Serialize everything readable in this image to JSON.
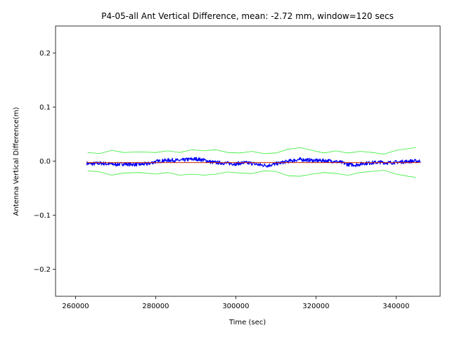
{
  "chart_data": {
    "type": "line",
    "title": "P4-05-all Ant Vertical Difference, mean: -2.72 mm, window=120 secs",
    "xlabel": "Time (sec)",
    "ylabel": "Antenna Vertical Difference(m)",
    "xlim": [
      255000,
      351000
    ],
    "ylim": [
      -0.25,
      0.25
    ],
    "xticks": [
      260000,
      280000,
      300000,
      320000,
      340000
    ],
    "xtick_labels": [
      "260000",
      "280000",
      "300000",
      "320000",
      "340000"
    ],
    "yticks": [
      0.2,
      0.1,
      0.0,
      -0.1,
      -0.2
    ],
    "ytick_labels": [
      "0.2",
      "0.1",
      "0.0",
      "−0.1",
      "−0.2"
    ],
    "grid": false,
    "series": [
      {
        "role": "measurement",
        "color": "#0000ff",
        "x": [
          262800,
          264000,
          266000,
          268000,
          270000,
          272000,
          274000,
          276000,
          278000,
          280000,
          282000,
          284000,
          286000,
          288000,
          290000,
          292000,
          294000,
          296000,
          298000,
          300000,
          302000,
          304000,
          306000,
          308000,
          310000,
          312000,
          314000,
          316000,
          318000,
          320000,
          322000,
          324000,
          326000,
          328000,
          330000,
          332000,
          334000,
          336000,
          338000,
          340000,
          342000,
          344000,
          346000
        ],
        "y": [
          -0.004,
          -0.005,
          -0.004,
          -0.005,
          -0.006,
          -0.005,
          -0.006,
          -0.006,
          -0.005,
          -0.001,
          0.001,
          0.002,
          0.001,
          0.003,
          0.004,
          0.002,
          -0.002,
          -0.003,
          -0.004,
          -0.005,
          -0.003,
          -0.004,
          -0.007,
          -0.008,
          -0.005,
          -0.002,
          0.001,
          0.003,
          0.002,
          0.001,
          0.001,
          0.0,
          -0.002,
          -0.006,
          -0.007,
          -0.004,
          -0.003,
          -0.002,
          -0.003,
          -0.002,
          -0.001,
          0.0,
          0.0
        ]
      },
      {
        "role": "mean",
        "color": "#cc2200",
        "x": [
          262800,
          346000
        ],
        "y": [
          -0.0027,
          -0.0027
        ]
      },
      {
        "role": "upper-envelope",
        "color": "#33ee33",
        "x": [
          263000,
          266000,
          269000,
          272000,
          276000,
          280000,
          283000,
          286000,
          289000,
          292000,
          295000,
          298000,
          301000,
          304000,
          307000,
          310000,
          313000,
          316000,
          319000,
          322000,
          325000,
          328000,
          331000,
          334000,
          337000,
          340000,
          343000,
          345000
        ],
        "y": [
          0.016,
          0.014,
          0.02,
          0.016,
          0.017,
          0.016,
          0.019,
          0.016,
          0.021,
          0.019,
          0.021,
          0.016,
          0.015,
          0.018,
          0.014,
          0.015,
          0.022,
          0.025,
          0.02,
          0.015,
          0.019,
          0.015,
          0.018,
          0.016,
          0.013,
          0.02,
          0.023,
          0.025
        ]
      },
      {
        "role": "lower-envelope",
        "color": "#33ee33",
        "x": [
          263000,
          266000,
          269000,
          272000,
          276000,
          280000,
          283000,
          286000,
          289000,
          292000,
          295000,
          298000,
          301000,
          304000,
          307000,
          310000,
          313000,
          316000,
          319000,
          322000,
          325000,
          328000,
          331000,
          334000,
          337000,
          340000,
          343000,
          345000
        ],
        "y": [
          -0.018,
          -0.02,
          -0.026,
          -0.022,
          -0.021,
          -0.024,
          -0.021,
          -0.026,
          -0.024,
          -0.026,
          -0.024,
          -0.02,
          -0.022,
          -0.023,
          -0.018,
          -0.019,
          -0.027,
          -0.028,
          -0.024,
          -0.021,
          -0.023,
          -0.026,
          -0.021,
          -0.019,
          -0.017,
          -0.024,
          -0.028,
          -0.03
        ]
      }
    ]
  }
}
